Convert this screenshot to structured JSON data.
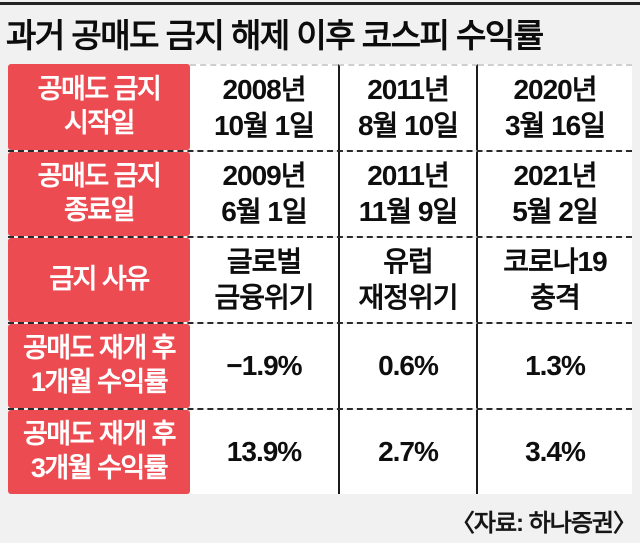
{
  "title": "과거 공매도 금지 해제 이후 코스피 수익률",
  "source_label": "〈자료: 하나증권〉",
  "colors": {
    "accent_red": "#ED4B52",
    "page_background": "#F1F1F2",
    "cell_background": "#FFFFFF",
    "rule_black": "#232323"
  },
  "chart_data": {
    "type": "table",
    "title": "과거 공매도 금지 해제 이후 코스피 수익률",
    "source": "자료: 하나증권",
    "rows": [
      {
        "header": "공매도 금지\n시작일",
        "values": [
          "2008년\n10월 1일",
          "2011년\n8월 10일",
          "2020년\n3월 16일"
        ]
      },
      {
        "header": "공매도 금지\n종료일",
        "values": [
          "2009년\n6월 1일",
          "2011년\n11월 9일",
          "2021년\n5월 2일"
        ]
      },
      {
        "header": "금지 사유",
        "values": [
          "글로벌\n금융위기",
          "유럽\n재정위기",
          "코로나19\n충격"
        ]
      },
      {
        "header": "공매도 재개 후\n1개월 수익률",
        "values": [
          "−1.9%",
          "0.6%",
          "1.3%"
        ]
      },
      {
        "header": "공매도 재개 후\n3개월 수익률",
        "values": [
          "13.9%",
          "2.7%",
          "3.4%"
        ]
      }
    ]
  }
}
